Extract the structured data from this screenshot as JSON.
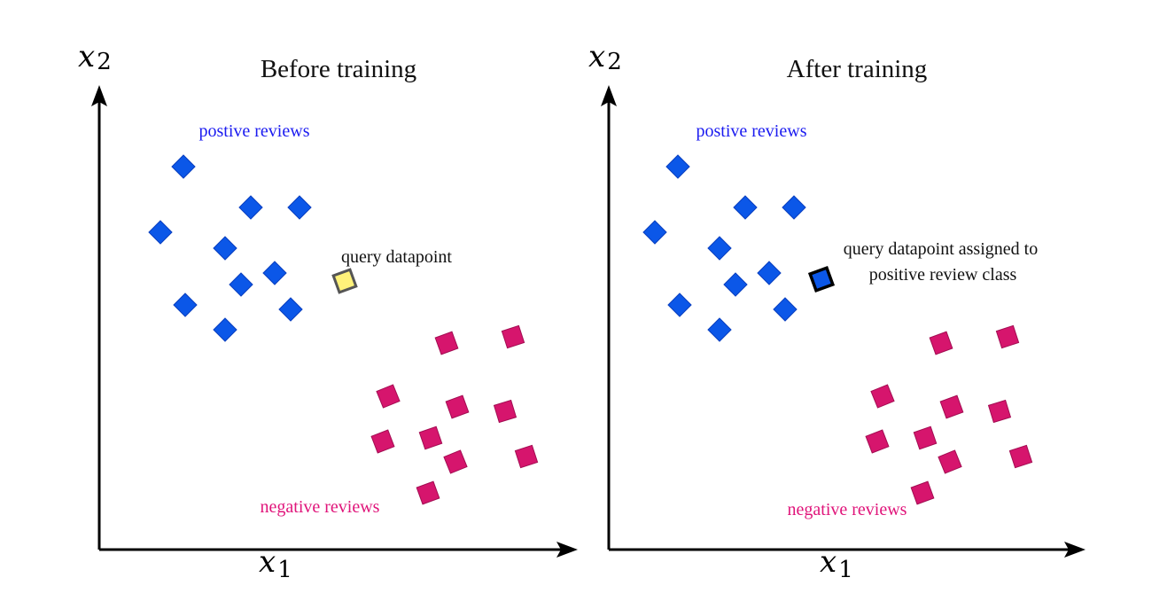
{
  "colors": {
    "axis": "#000000",
    "positive": "#0b57e8",
    "positive_stroke": "#0a3fbf",
    "negative": "#d6156d",
    "negative_stroke": "#a30d52",
    "query_before_fill": "#fff27a",
    "query_before_stroke": "#555555",
    "query_after_fill": "#0b57e8",
    "query_after_stroke": "#000000",
    "positive_label": "#1b1bf0",
    "negative_label": "#e0147a"
  },
  "panels": [
    {
      "title": "Before training",
      "x_axis": {
        "var": "x",
        "sub": "1"
      },
      "y_axis": {
        "var": "x",
        "sub": "2"
      },
      "positive_label": "postive reviews",
      "negative_label": "negative reviews",
      "query_label_lines": [
        "query datapoint"
      ],
      "query_state": "unassigned"
    },
    {
      "title": "After training",
      "x_axis": {
        "var": "x",
        "sub": "1"
      },
      "y_axis": {
        "var": "x",
        "sub": "2"
      },
      "positive_label": "postive reviews",
      "negative_label": "negative reviews",
      "query_label_lines": [
        "query datapoint assigned to",
        "positive review class"
      ],
      "query_state": "assigned-positive"
    }
  ]
}
